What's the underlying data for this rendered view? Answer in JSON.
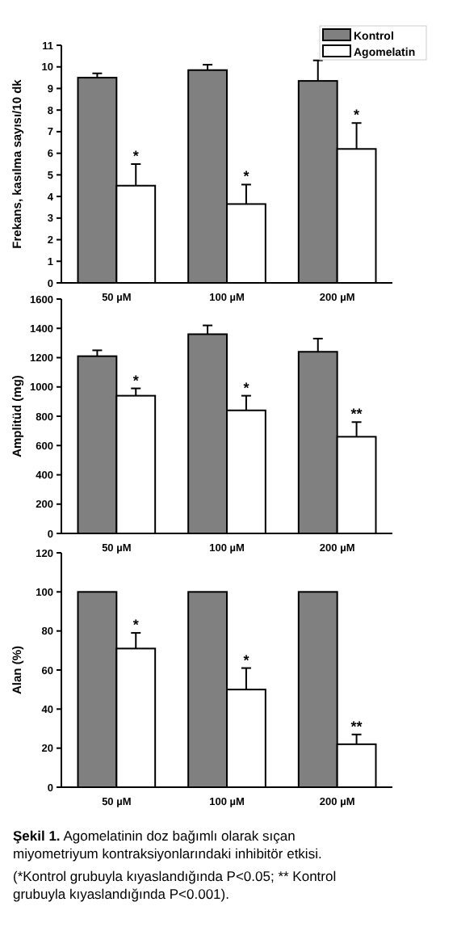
{
  "chart_data": [
    {
      "type": "bar",
      "ylabel": "Frekans, kasılma sayısı/10 dk",
      "categories": [
        "50 µM",
        "100 µM",
        "200 µM"
      ],
      "ylim": [
        0,
        11
      ],
      "yticks": [
        0,
        1,
        2,
        3,
        4,
        5,
        6,
        7,
        8,
        9,
        10,
        11
      ],
      "legend": "top right",
      "series": [
        {
          "name": "Kontrol",
          "color": "#808080",
          "values": [
            9.5,
            9.85,
            9.35
          ],
          "errors": [
            [
              9.5,
              9.7
            ],
            [
              9.85,
              10.1
            ],
            [
              9.35,
              10.3
            ]
          ]
        },
        {
          "name": "Agomelatin",
          "color": "#ffffff",
          "values": [
            4.5,
            3.65,
            6.2
          ],
          "errors": [
            [
              4.5,
              5.5
            ],
            [
              3.65,
              4.55
            ],
            [
              6.2,
              7.4
            ]
          ]
        }
      ],
      "annotations": [
        {
          "text": "*",
          "x": "50 µM",
          "y": 5.5
        },
        {
          "text": "*",
          "x": "100 µM",
          "y": 4.55
        },
        {
          "text": "*",
          "x": "200 µM",
          "y": 7.4
        }
      ]
    },
    {
      "type": "bar",
      "ylabel": "Amplitüd (mg)",
      "categories": [
        "50 µM",
        "100 µM",
        "200 µM"
      ],
      "ylim": [
        0,
        1600
      ],
      "yticks": [
        0,
        200,
        400,
        600,
        800,
        1000,
        1200,
        1400,
        1600
      ],
      "series": [
        {
          "color": "#808080",
          "values": [
            1210,
            1360,
            1240
          ],
          "errors": [
            [
              1210,
              1250
            ],
            [
              1360,
              1420
            ],
            [
              1240,
              1330
            ]
          ]
        },
        {
          "color": "#ffffff",
          "values": [
            940,
            840,
            660
          ],
          "errors": [
            [
              940,
              990
            ],
            [
              840,
              940
            ],
            [
              660,
              760
            ]
          ]
        }
      ],
      "annotations": [
        {
          "text": "*",
          "x": "50 µM",
          "y": 990
        },
        {
          "text": "*",
          "x": "100 µM",
          "y": 940
        },
        {
          "text": "**",
          "x": "200 µM",
          "y": 760
        }
      ]
    },
    {
      "type": "bar",
      "ylabel": "Alan (%)",
      "categories": [
        "50 µM",
        "100 µM",
        "200 µM"
      ],
      "ylim": [
        0,
        120
      ],
      "yticks": [
        0,
        20,
        40,
        60,
        80,
        100,
        120
      ],
      "series": [
        {
          "color": "#808080",
          "values": [
            100,
            100,
            100
          ]
        },
        {
          "color": "#ffffff",
          "values": [
            71,
            50,
            22
          ],
          "errors": [
            [
              71,
              79
            ],
            [
              50,
              61
            ],
            [
              22,
              27
            ]
          ]
        }
      ],
      "annotations": [
        {
          "text": "*",
          "x": "50 µM",
          "y": 79
        },
        {
          "text": "*",
          "x": "100 µM",
          "y": 61
        },
        {
          "text": "**",
          "x": "200 µM",
          "y": 27
        },
        "Şekil 1. Agomelatinin doz bağımlı olarak sıçan miyometriyum kontraksiyonlarındaki inhibitör etkisi.",
        "(*Kontrol grubuyla kıyaslandığında P<0.05; ** Kontrol grubuyla kıyaslandığında P<0.001)."
      ]
    }
  ]
}
